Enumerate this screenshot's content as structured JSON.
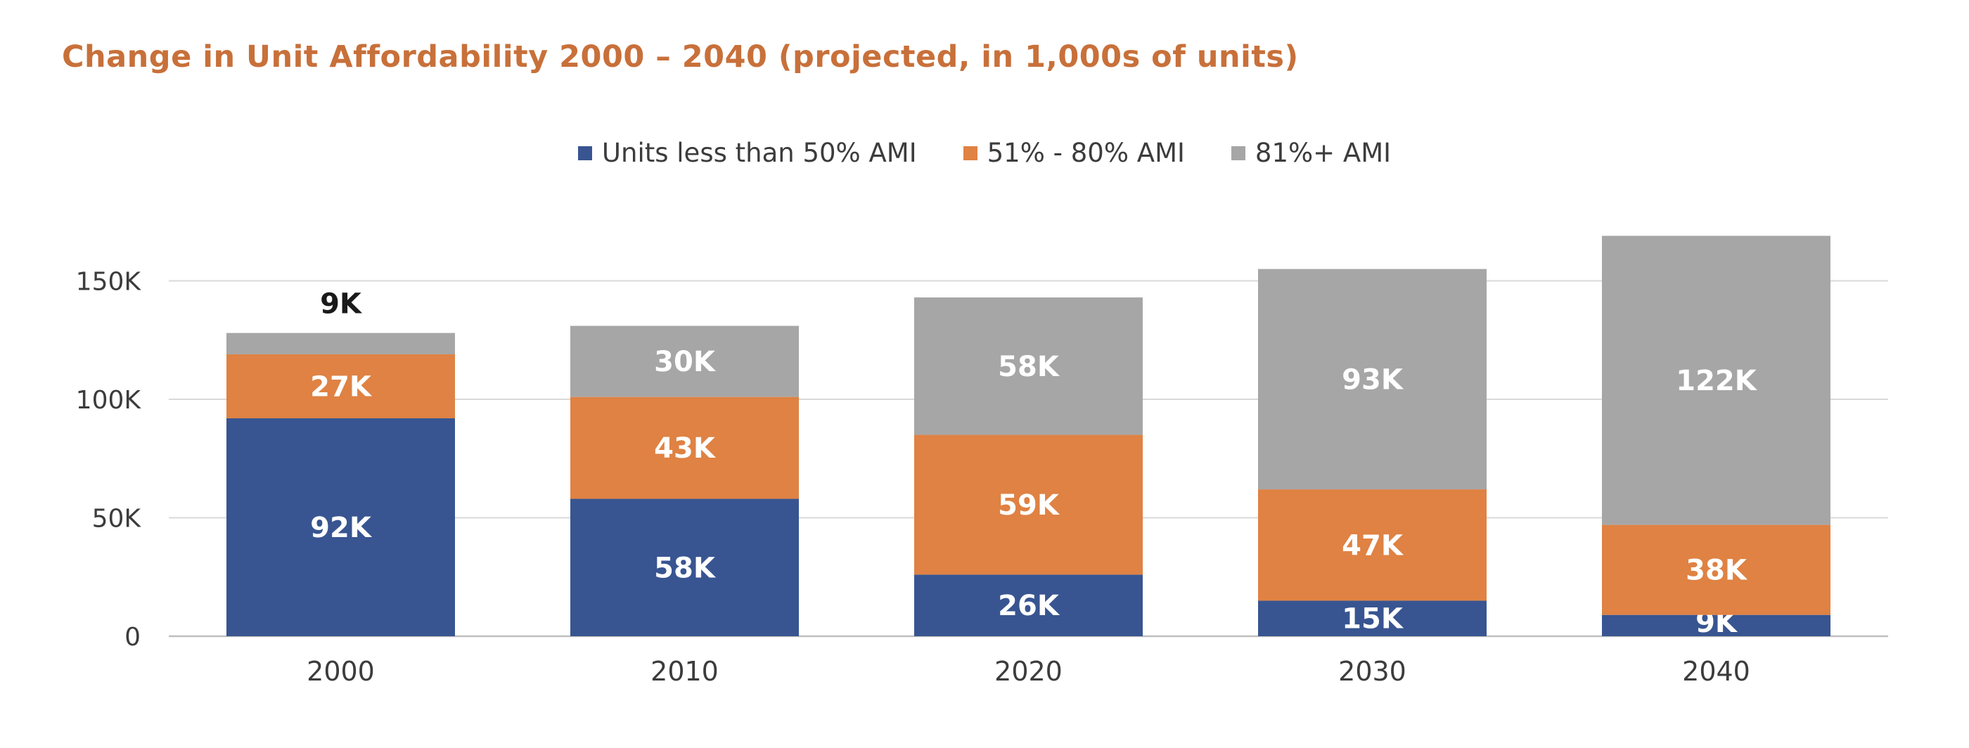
{
  "title": "Change in Unit Affordability 2000 – 2040 (projected, in 1,000s of units)",
  "colors": {
    "title": "#c8703a",
    "series_1": "#385591",
    "series_2": "#df8243",
    "series_3": "#a6a6a6",
    "gridline": "#d9d9d9",
    "axis_text": "#3c3c3c",
    "data_label": "#ffffff",
    "outside_label": "#1a1a1a"
  },
  "chart_data": {
    "type": "bar",
    "stacked": true,
    "title": "Change in Unit Affordability 2000 – 2040 (projected, in 1,000s of units)",
    "xlabel": "",
    "ylabel": "",
    "categories": [
      "2000",
      "2010",
      "2020",
      "2030",
      "2040"
    ],
    "series": [
      {
        "name": "Units less than 50% AMI",
        "values": [
          92,
          58,
          26,
          15,
          9
        ],
        "labels": [
          "92K",
          "58K",
          "26K",
          "15K",
          "9K"
        ]
      },
      {
        "name": "51% - 80% AMI",
        "values": [
          27,
          43,
          59,
          47,
          38
        ],
        "labels": [
          "27K",
          "43K",
          "59K",
          "47K",
          "38K"
        ]
      },
      {
        "name": "81%+ AMI",
        "values": [
          9,
          30,
          58,
          93,
          122
        ],
        "labels": [
          "9K",
          "30K",
          "58K",
          "93K",
          "122K"
        ]
      }
    ],
    "y_ticks": [
      {
        "value": 0,
        "label": "0"
      },
      {
        "value": 50,
        "label": "50K"
      },
      {
        "value": 100,
        "label": "100K"
      },
      {
        "value": 150,
        "label": "150K"
      }
    ],
    "ylim": [
      0,
      170
    ],
    "grid": true,
    "legend_position": "top-center"
  }
}
